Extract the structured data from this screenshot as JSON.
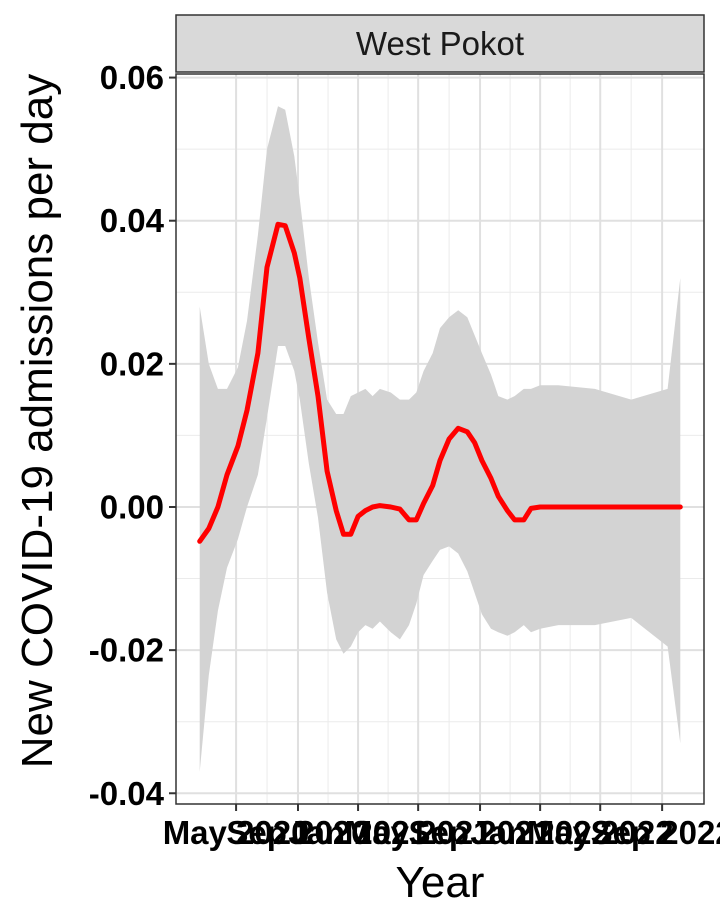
{
  "chart_data": {
    "type": "line",
    "facet": "West Pokot",
    "xlabel": "Year",
    "ylabel": "New COVID-19 admissions per day",
    "x_ticks": [
      "May 2020",
      "Sep 2020",
      "Jan 2021",
      "May 2021",
      "Sep 2021",
      "Jan 2022",
      "May 2022",
      "Sep 2022"
    ],
    "x_tick_times": [
      2020.33,
      2020.67,
      2021.0,
      2021.33,
      2021.67,
      2022.0,
      2022.33,
      2022.67
    ],
    "y_ticks": [
      "-0.04",
      "-0.02",
      "0.00",
      "0.02",
      "0.04",
      "0.06"
    ],
    "ylim": [
      -0.0415,
      0.0605
    ],
    "xlim": [
      2020.0,
      2022.9
    ],
    "grid": true,
    "line_color": "#ff0000",
    "ribbon_color": "#d3d3d3",
    "strip_fill": "#d9d9d9",
    "series": [
      {
        "x": [
          2020.13,
          2020.18,
          2020.23,
          2020.28,
          2020.34,
          2020.39,
          2020.45,
          2020.5,
          2020.56,
          2020.6,
          2020.65,
          2020.68,
          2020.73,
          2020.78,
          2020.83,
          2020.88,
          2020.92,
          2020.96,
          2021.0,
          2021.04,
          2021.08,
          2021.12,
          2021.18,
          2021.23,
          2021.28,
          2021.32,
          2021.36,
          2021.41,
          2021.45,
          2021.5,
          2021.55,
          2021.6,
          2021.64,
          2021.68,
          2021.73,
          2021.77,
          2021.82,
          2021.86,
          2021.91,
          2021.95,
          2022.0,
          2022.1,
          2022.3,
          2022.5,
          2022.7,
          2022.77
        ],
        "y": [
          -0.0048,
          -0.003,
          0.0,
          0.0045,
          0.0085,
          0.0135,
          0.0215,
          0.0335,
          0.0395,
          0.0393,
          0.0355,
          0.032,
          0.0235,
          0.0155,
          0.005,
          -0.0005,
          -0.0038,
          -0.0038,
          -0.0013,
          -0.0005,
          0.0,
          0.0002,
          0.0,
          -0.0003,
          -0.0018,
          -0.0018,
          0.0005,
          0.003,
          0.0065,
          0.0095,
          0.011,
          0.0105,
          0.009,
          0.0065,
          0.004,
          0.0015,
          -0.0005,
          -0.0018,
          -0.0018,
          -0.0002,
          0.0,
          0.0,
          0.0,
          0.0,
          0.0,
          0.0
        ],
        "upper": [
          0.028,
          0.02,
          0.0165,
          0.0165,
          0.0195,
          0.026,
          0.038,
          0.05,
          0.056,
          0.0555,
          0.049,
          0.043,
          0.032,
          0.023,
          0.015,
          0.013,
          0.013,
          0.0155,
          0.016,
          0.0165,
          0.0155,
          0.0165,
          0.016,
          0.015,
          0.015,
          0.016,
          0.019,
          0.0215,
          0.025,
          0.0265,
          0.0275,
          0.0265,
          0.024,
          0.0215,
          0.0185,
          0.0155,
          0.015,
          0.0155,
          0.0165,
          0.0165,
          0.017,
          0.017,
          0.0165,
          0.015,
          0.0165,
          0.032
        ],
        "lower": [
          -0.037,
          -0.0235,
          -0.0145,
          -0.0085,
          -0.0045,
          0.0,
          0.0045,
          0.0125,
          0.0225,
          0.0225,
          0.019,
          0.015,
          0.006,
          -0.0015,
          -0.012,
          -0.0185,
          -0.0205,
          -0.0195,
          -0.0175,
          -0.0165,
          -0.017,
          -0.016,
          -0.0175,
          -0.0185,
          -0.0165,
          -0.0135,
          -0.0095,
          -0.0075,
          -0.006,
          -0.0055,
          -0.0065,
          -0.009,
          -0.012,
          -0.015,
          -0.017,
          -0.0175,
          -0.018,
          -0.0175,
          -0.0165,
          -0.0175,
          -0.017,
          -0.0165,
          -0.0165,
          -0.0155,
          -0.0195,
          -0.033
        ]
      }
    ]
  }
}
